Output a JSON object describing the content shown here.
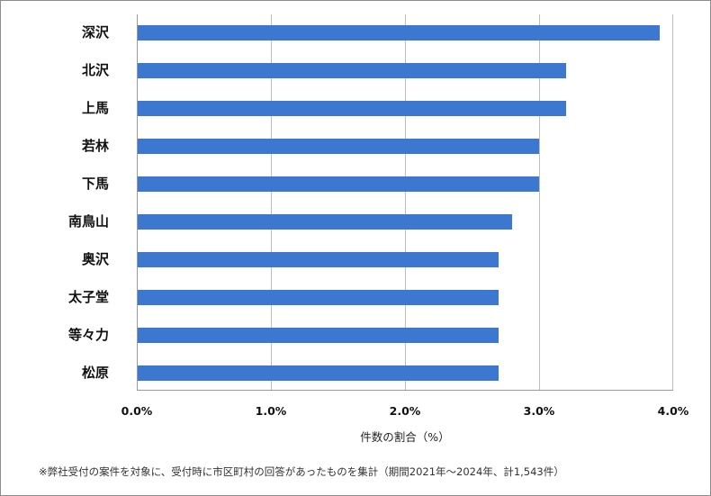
{
  "chart_data": {
    "type": "bar",
    "orientation": "horizontal",
    "title": "",
    "xlabel": "件数の割合（%）",
    "ylabel": "",
    "categories": [
      "深沢",
      "北沢",
      "上馬",
      "若林",
      "下馬",
      "南鳥山",
      "奥沢",
      "太子堂",
      "等々力",
      "松原"
    ],
    "values": [
      3.9,
      3.2,
      3.2,
      3.0,
      3.0,
      2.8,
      2.7,
      2.7,
      2.7,
      2.7
    ],
    "unit": "%",
    "xlim": [
      0,
      4.0
    ],
    "x_ticks": [
      "0.0%",
      "1.0%",
      "2.0%",
      "3.0%",
      "4.0%"
    ],
    "grid": true,
    "legend": "none",
    "bar_color": "#3c78d0"
  },
  "labels": {
    "categories": [
      "深沢",
      "北沢",
      "上馬",
      "若林",
      "下馬",
      "南鳥山",
      "奥沢",
      "太子堂",
      "等々力",
      "松原"
    ],
    "ticks": [
      "0.0%",
      "1.0%",
      "2.0%",
      "3.0%",
      "4.0%"
    ],
    "x_title": "件数の割合（%）",
    "footnote": "※弊社受付の案件を対象に、受付時に市区町村の回答があったものを集計（期間2021年～2024年、計1,543件）"
  }
}
